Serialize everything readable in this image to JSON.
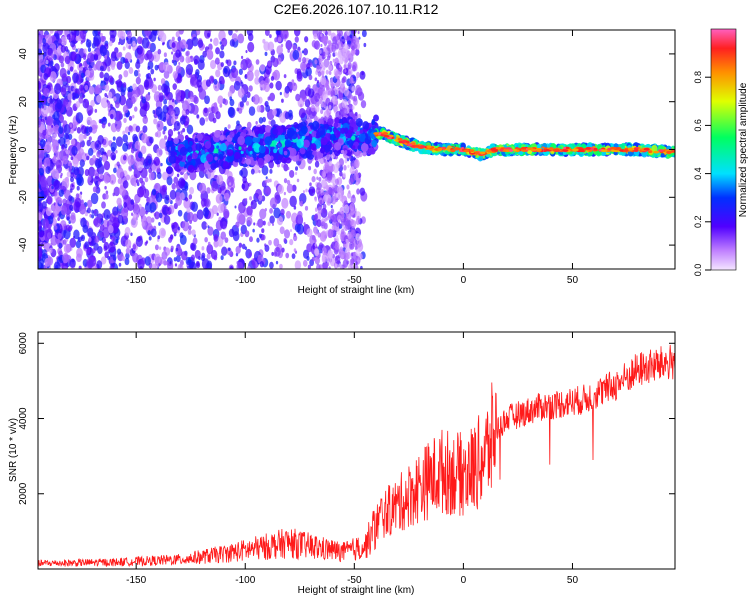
{
  "figure": {
    "title": "C2E6.2026.107.10.11.R12"
  },
  "chart_data": [
    {
      "type": "heatmap",
      "xlabel": "Height of straight line (km)",
      "ylabel": "Frequency (Hz)",
      "xlim": [
        -195,
        97
      ],
      "ylim": [
        -50,
        50
      ],
      "xticks": [
        -150,
        -100,
        -50,
        0,
        50
      ],
      "yticks": [
        -40,
        -20,
        0,
        20,
        40
      ],
      "xtick_labels": [
        "-150",
        "-100",
        "-50",
        "0",
        "50"
      ],
      "ytick_labels": [
        "-40",
        "-20",
        "0",
        "20",
        "40"
      ],
      "centroid_track": [
        {
          "x": -130,
          "y": -2
        },
        {
          "x": -110,
          "y": 0
        },
        {
          "x": -90,
          "y": 2
        },
        {
          "x": -70,
          "y": 4
        },
        {
          "x": -55,
          "y": 6
        },
        {
          "x": -45,
          "y": 5
        },
        {
          "x": -38,
          "y": 7
        },
        {
          "x": -30,
          "y": 4
        },
        {
          "x": -20,
          "y": 1
        },
        {
          "x": -10,
          "y": 0
        },
        {
          "x": 0,
          "y": 0
        },
        {
          "x": 8,
          "y": -2
        },
        {
          "x": 15,
          "y": 0
        },
        {
          "x": 50,
          "y": 0
        },
        {
          "x": 80,
          "y": 0
        },
        {
          "x": 95,
          "y": -1
        }
      ],
      "colorbar": {
        "label": "Normalized spectral amplitude",
        "range": [
          0,
          1
        ],
        "ticks": [
          0.0,
          0.2,
          0.4,
          0.6,
          0.8
        ],
        "tick_labels": [
          "0.0",
          "0.2",
          "0.4",
          "0.6",
          "0.8"
        ]
      }
    },
    {
      "type": "line",
      "xlabel": "Height of straight line (km)",
      "ylabel": "SNR (10 * v/v)",
      "xlim": [
        -195,
        97
      ],
      "ylim": [
        0,
        6300
      ],
      "xticks": [
        -150,
        -100,
        -50,
        0,
        50
      ],
      "yticks": [
        2000,
        4000,
        6000
      ],
      "xtick_labels": [
        "-150",
        "-100",
        "-50",
        "0",
        "50"
      ],
      "ytick_labels": [
        "2000",
        "4000",
        "6000"
      ],
      "series": [
        {
          "name": "SNR",
          "color": "#ff1a1a",
          "points": [
            {
              "x": -195,
              "y": 150
            },
            {
              "x": -160,
              "y": 180
            },
            {
              "x": -130,
              "y": 250
            },
            {
              "x": -110,
              "y": 400
            },
            {
              "x": -90,
              "y": 600
            },
            {
              "x": -80,
              "y": 700
            },
            {
              "x": -70,
              "y": 600
            },
            {
              "x": -55,
              "y": 450
            },
            {
              "x": -45,
              "y": 600
            },
            {
              "x": -38,
              "y": 1400
            },
            {
              "x": -30,
              "y": 1700
            },
            {
              "x": -20,
              "y": 2200
            },
            {
              "x": -10,
              "y": 2600
            },
            {
              "x": 0,
              "y": 2500
            },
            {
              "x": 5,
              "y": 2700
            },
            {
              "x": 10,
              "y": 3000
            },
            {
              "x": 15,
              "y": 3700
            },
            {
              "x": 20,
              "y": 4000
            },
            {
              "x": 35,
              "y": 4300
            },
            {
              "x": 55,
              "y": 4500
            },
            {
              "x": 70,
              "y": 4900
            },
            {
              "x": 80,
              "y": 5300
            },
            {
              "x": 95,
              "y": 5500
            }
          ]
        }
      ]
    }
  ]
}
